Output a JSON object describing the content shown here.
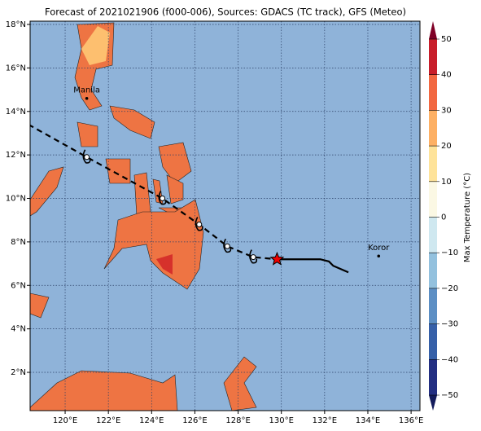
{
  "title": "Forecast of 2021021906 (f000-006), Sources: GDACS (TC track), GFS (Meteo)",
  "map": {
    "xlim": [
      118.38,
      136.41
    ],
    "ylim": [
      0.24,
      18.15
    ],
    "xticks": [
      {
        "value": 120,
        "label": "120°E"
      },
      {
        "value": 122,
        "label": "122°E"
      },
      {
        "value": 124,
        "label": "124°E"
      },
      {
        "value": 126,
        "label": "126°E"
      },
      {
        "value": 128,
        "label": "128°E"
      },
      {
        "value": 130,
        "label": "130°E"
      },
      {
        "value": 132,
        "label": "132°E"
      },
      {
        "value": 134,
        "label": "134°E"
      },
      {
        "value": 136,
        "label": "136°E"
      }
    ],
    "yticks": [
      {
        "value": 2,
        "label": "2°N"
      },
      {
        "value": 4,
        "label": "4°N"
      },
      {
        "value": 6,
        "label": "6°N"
      },
      {
        "value": 8,
        "label": "8°N"
      },
      {
        "value": 10,
        "label": "10°N"
      },
      {
        "value": 12,
        "label": "12°N"
      },
      {
        "value": 14,
        "label": "14°N"
      },
      {
        "value": 16,
        "label": "16°N"
      },
      {
        "value": 18,
        "label": "18°N"
      }
    ],
    "places": [
      {
        "name": "Manila",
        "lon": 121.0,
        "lat": 14.6
      },
      {
        "name": "Koror",
        "lon": 134.5,
        "lat": 7.35
      }
    ],
    "track": {
      "lon": [
        118.3,
        121.0,
        124.5,
        126.2,
        127.5,
        128.7,
        129.8
      ],
      "lat": [
        13.4,
        11.9,
        10.0,
        8.8,
        7.8,
        7.3,
        7.2
      ]
    },
    "forecast": {
      "lon": [
        129.8,
        131.8,
        132.2,
        132.4,
        133.1
      ],
      "lat": [
        7.2,
        7.2,
        7.1,
        6.9,
        6.6
      ]
    }
  },
  "colorbar": {
    "label": "Max Temperature (°C)",
    "lim": [
      -50,
      50
    ],
    "ticks": [
      {
        "value": -50,
        "label": "−50"
      },
      {
        "value": -40,
        "label": "−40"
      },
      {
        "value": -30,
        "label": "−30"
      },
      {
        "value": -20,
        "label": "−20"
      },
      {
        "value": -10,
        "label": "−10"
      },
      0,
      10,
      20,
      30,
      40,
      50
    ]
  }
}
